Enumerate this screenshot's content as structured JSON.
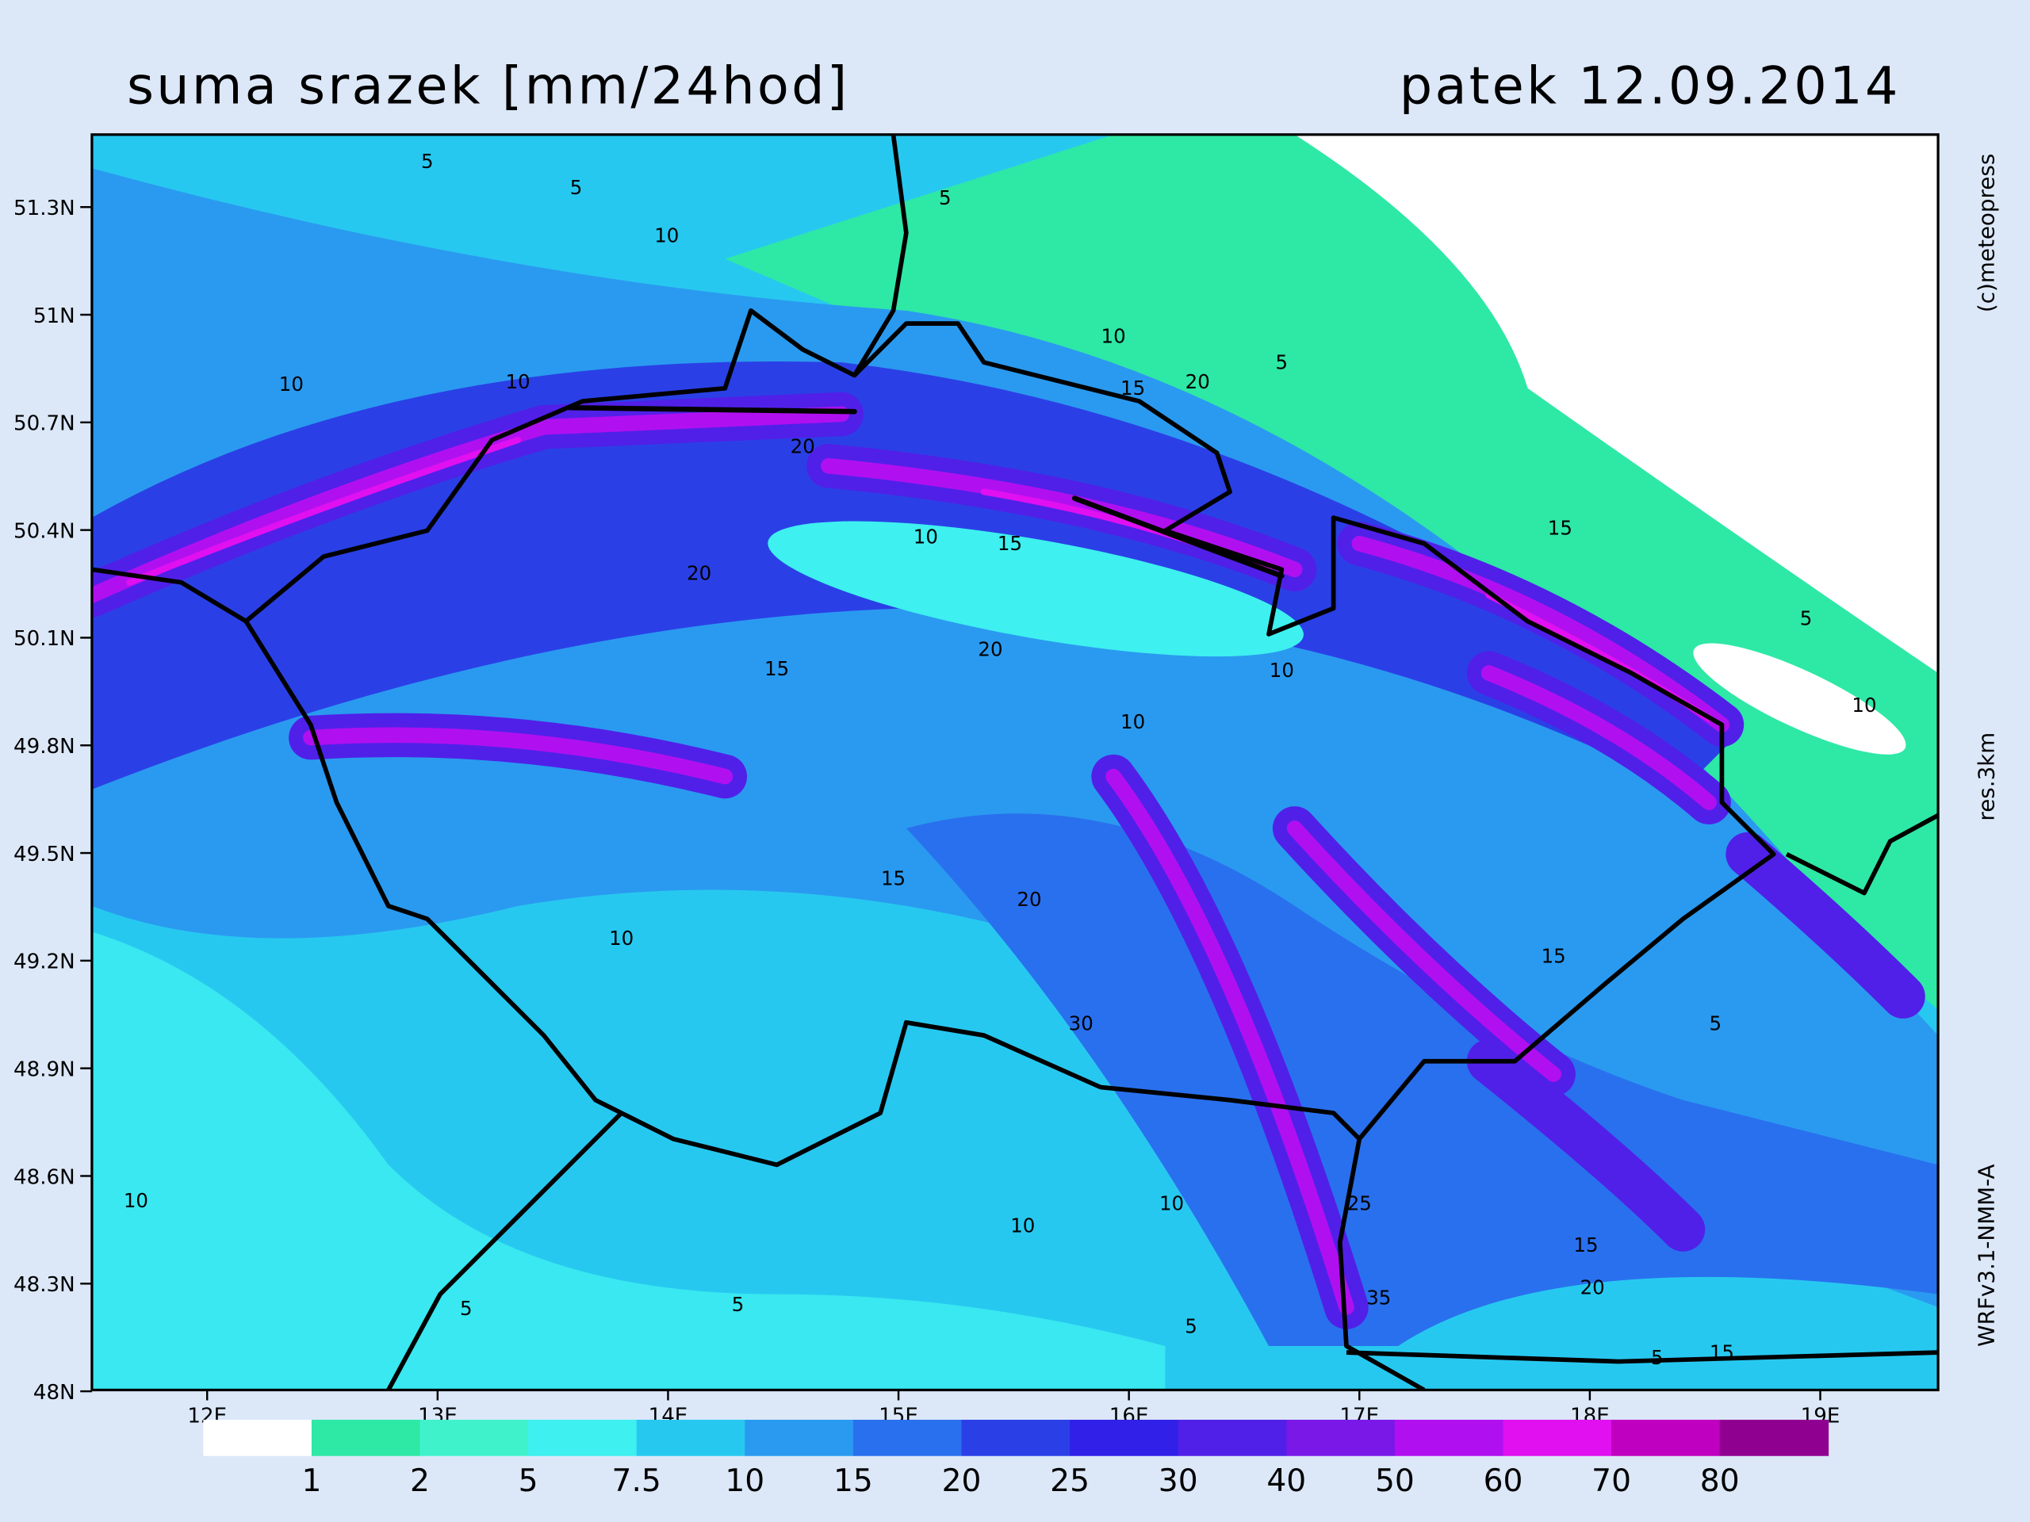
{
  "header": {
    "title": "suma srazek [mm/24hod]",
    "date": "patek 12.09.2014"
  },
  "credits": [
    "(c)meteopress",
    "res.3km",
    "WRFv3.1-NMM-A"
  ],
  "axes": {
    "lat_labels": [
      "51.3N",
      "51N",
      "50.7N",
      "50.4N",
      "50.1N",
      "49.8N",
      "49.5N",
      "49.2N",
      "48.9N",
      "48.6N",
      "48.3N",
      "48N"
    ],
    "lon_labels": [
      "12E",
      "13E",
      "14E",
      "15E",
      "16E",
      "17E",
      "18E",
      "19E"
    ]
  },
  "legend": {
    "colors": [
      "#ffffff",
      "#2ee8a6",
      "#40f2cc",
      "#3ef0f0",
      "#27c8f0",
      "#2a9af0",
      "#2970ee",
      "#2a40e6",
      "#3020e8",
      "#5020e8",
      "#7a18e8",
      "#b010f0",
      "#e010f0",
      "#c000c0",
      "#900090"
    ],
    "labels": [
      "1",
      "2",
      "5",
      "7.5",
      "10",
      "15",
      "20",
      "25",
      "30",
      "40",
      "50",
      "60",
      "70",
      "80"
    ]
  },
  "map": {
    "contour_labels": [
      "5",
      "5",
      "5",
      "10",
      "10",
      "10",
      "10",
      "5",
      "15",
      "20",
      "20",
      "20",
      "10",
      "15",
      "10",
      "15",
      "5",
      "10",
      "15",
      "20",
      "10",
      "15",
      "20",
      "10",
      "30",
      "15",
      "5",
      "10",
      "10",
      "10",
      "25",
      "35",
      "5",
      "5",
      "5",
      "5",
      "15",
      "20",
      "15"
    ]
  }
}
